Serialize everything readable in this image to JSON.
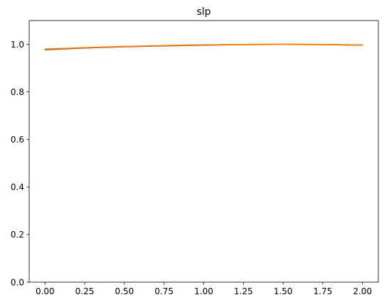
{
  "chart_data": {
    "type": "line",
    "title": "slp",
    "xlabel": "",
    "ylabel": "",
    "xlim": [
      -0.1,
      2.1
    ],
    "ylim": [
      0.0,
      1.1
    ],
    "xticks": [
      0.0,
      0.25,
      0.5,
      0.75,
      1.0,
      1.25,
      1.5,
      1.75,
      2.0
    ],
    "xtick_labels": [
      "0.00",
      "0.25",
      "0.50",
      "0.75",
      "1.00",
      "1.25",
      "1.50",
      "1.75",
      "2.00"
    ],
    "yticks": [
      0.0,
      0.2,
      0.4,
      0.6,
      0.8,
      1.0
    ],
    "ytick_labels": [
      "0.0",
      "0.2",
      "0.4",
      "0.6",
      "0.8",
      "1.0"
    ],
    "grid": false,
    "legend": "none",
    "x": [
      0.0,
      0.25,
      0.5,
      0.75,
      1.0,
      1.25,
      1.5,
      1.75,
      2.0
    ],
    "series": [
      {
        "color": "#3f3f3f",
        "values": [
          0.978,
          0.985,
          0.99,
          0.994,
          0.997,
          0.999,
          1.0,
          0.999,
          0.997
        ]
      },
      {
        "color": "#ff7f0e",
        "values": [
          0.98,
          0.986,
          0.991,
          0.995,
          0.998,
          0.999,
          1.0,
          0.999,
          0.997
        ]
      }
    ]
  }
}
